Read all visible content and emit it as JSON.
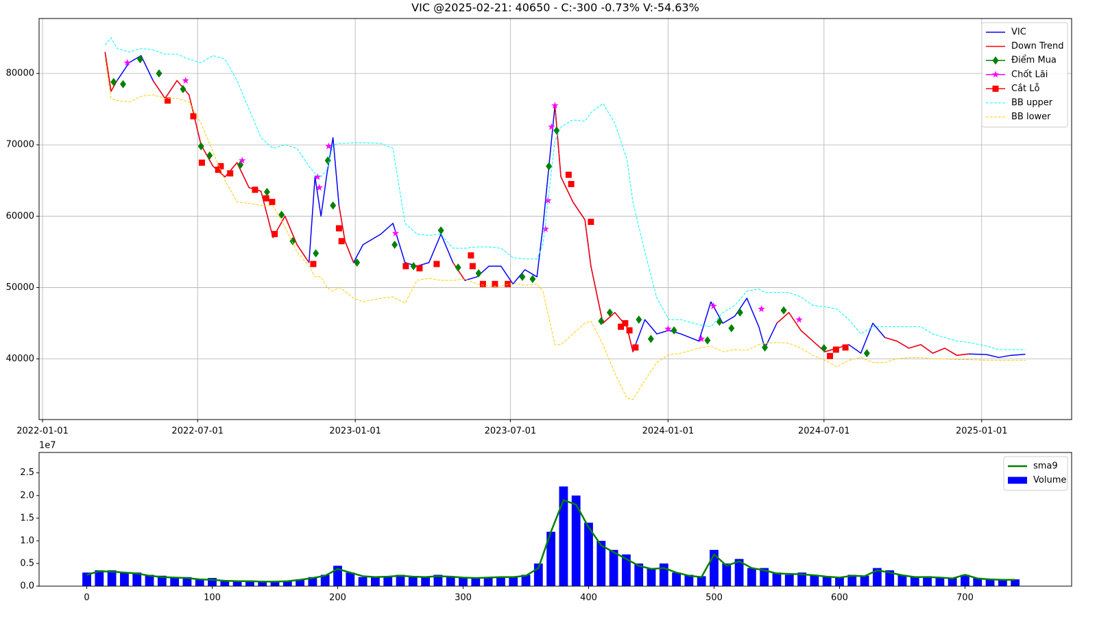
{
  "chart_data": [
    {
      "type": "line",
      "title": "VIC @2025-02-21: 40650 - C:-300 -0.73% V:-54.63%",
      "x_scale": "time",
      "grid": true,
      "legend": "upper right",
      "xlim": [
        "2021-12-28",
        "2025-04-16"
      ],
      "xticks": [
        "2022-01-01",
        "2022-07-01",
        "2023-01-01",
        "2023-07-01",
        "2024-01-01",
        "2024-07-01",
        "2025-01-01"
      ],
      "ylim": [
        31500,
        87700
      ],
      "yticks": [
        40000,
        50000,
        60000,
        70000,
        80000
      ],
      "x": [
        "2022-03-15",
        "2022-03-22",
        "2022-03-29",
        "2022-04-12",
        "2022-04-26",
        "2022-05-10",
        "2022-05-24",
        "2022-06-07",
        "2022-06-21",
        "2022-07-05",
        "2022-07-19",
        "2022-08-02",
        "2022-08-16",
        "2022-08-30",
        "2022-09-13",
        "2022-09-27",
        "2022-10-11",
        "2022-10-25",
        "2022-11-08",
        "2022-11-15",
        "2022-11-22",
        "2022-11-29",
        "2022-12-06",
        "2022-12-13",
        "2022-12-20",
        "2022-12-30",
        "2023-01-10",
        "2023-01-31",
        "2023-02-14",
        "2023-02-28",
        "2023-03-14",
        "2023-03-28",
        "2023-04-11",
        "2023-04-25",
        "2023-05-09",
        "2023-05-23",
        "2023-06-06",
        "2023-06-20",
        "2023-07-04",
        "2023-07-18",
        "2023-08-01",
        "2023-08-08",
        "2023-08-22",
        "2023-08-29",
        "2023-09-12",
        "2023-09-26",
        "2023-10-03",
        "2023-10-17",
        "2023-10-31",
        "2023-11-14",
        "2023-11-21",
        "2023-12-05",
        "2023-12-19",
        "2024-01-02",
        "2024-01-16",
        "2024-02-06",
        "2024-02-20",
        "2024-03-05",
        "2024-03-19",
        "2024-04-02",
        "2024-04-16",
        "2024-04-23",
        "2024-05-07",
        "2024-05-21",
        "2024-06-04",
        "2024-06-18",
        "2024-07-02",
        "2024-07-16",
        "2024-07-30",
        "2024-08-13",
        "2024-08-27",
        "2024-09-10",
        "2024-09-24",
        "2024-10-08",
        "2024-10-22",
        "2024-11-05",
        "2024-11-19",
        "2024-12-03",
        "2024-12-17",
        "2025-01-07",
        "2025-01-21",
        "2025-02-04",
        "2025-02-21"
      ],
      "series": [
        {
          "name": "VIC",
          "color": "#0000ff",
          "kind": "line",
          "linestyle": "solid",
          "values": [
            83000,
            77500,
            79000,
            81500,
            82500,
            79000,
            76500,
            79000,
            77000,
            70000,
            67000,
            65500,
            67500,
            64000,
            63500,
            57000,
            60000,
            56000,
            53500,
            65500,
            60000,
            66000,
            71000,
            61500,
            56500,
            53500,
            56000,
            57500,
            59000,
            53500,
            53000,
            53500,
            57500,
            53500,
            51000,
            51500,
            53000,
            53000,
            50500,
            52500,
            51500,
            58500,
            75500,
            65500,
            62000,
            59500,
            53000,
            45000,
            46500,
            44500,
            41000,
            45500,
            43500,
            44000,
            43500,
            42500,
            48000,
            45000,
            46000,
            48500,
            44500,
            41500,
            45000,
            46500,
            44000,
            42500,
            41000,
            41500,
            42000,
            40800,
            45000,
            43000,
            42500,
            41500,
            42000,
            40800,
            41500,
            40500,
            40700,
            40600,
            40200,
            40500,
            40650
          ]
        },
        {
          "name": "Down Trend",
          "color": "#ff0000",
          "kind": "line",
          "linestyle": "solid",
          "values": [
            83000,
            77500,
            79000,
            null,
            null,
            79000,
            76500,
            79000,
            77000,
            70000,
            67000,
            65500,
            67500,
            64000,
            63500,
            57000,
            60000,
            56000,
            53500,
            null,
            null,
            null,
            null,
            61500,
            56500,
            53500,
            null,
            null,
            null,
            null,
            null,
            null,
            null,
            53500,
            51000,
            null,
            null,
            null,
            null,
            null,
            null,
            null,
            75500,
            65500,
            62000,
            59500,
            53000,
            45000,
            46500,
            44500,
            41000,
            null,
            null,
            null,
            null,
            null,
            null,
            null,
            null,
            null,
            null,
            null,
            45000,
            46500,
            44000,
            42500,
            41000,
            41500,
            42000,
            null,
            null,
            43000,
            42500,
            41500,
            42000,
            40800,
            41500,
            40500,
            40700,
            null,
            null,
            null,
            null
          ]
        },
        {
          "name": "Điểm Mua",
          "color": "#008000",
          "kind": "marker",
          "marker": "diamond",
          "x": [
            "2022-03-25",
            "2022-04-05",
            "2022-04-25",
            "2022-05-17",
            "2022-06-14",
            "2022-07-05",
            "2022-07-15",
            "2022-08-20",
            "2022-09-20",
            "2022-10-07",
            "2022-10-20",
            "2022-11-16",
            "2022-11-30",
            "2022-12-06",
            "2023-01-03",
            "2023-02-16",
            "2023-03-10",
            "2023-04-11",
            "2023-05-01",
            "2023-05-25",
            "2023-07-15",
            "2023-07-27",
            "2023-08-15",
            "2023-08-24",
            "2023-10-15",
            "2023-10-25",
            "2023-11-28",
            "2023-12-12",
            "2024-01-08",
            "2024-02-16",
            "2024-03-01",
            "2024-03-15",
            "2024-03-25",
            "2024-04-23",
            "2024-05-15",
            "2024-07-01",
            "2024-08-20"
          ],
          "values": [
            78800,
            78500,
            82000,
            80000,
            77800,
            69800,
            68500,
            67200,
            63400,
            60200,
            56500,
            54800,
            67800,
            61500,
            53500,
            56000,
            53000,
            58000,
            52800,
            52000,
            51500,
            51200,
            67000,
            72000,
            45300,
            46500,
            45500,
            42800,
            44000,
            42600,
            45200,
            44300,
            46500,
            41600,
            46800,
            41500,
            40800
          ]
        },
        {
          "name": "Chốt Lãi",
          "color": "#ff00ff",
          "kind": "marker",
          "marker": "star",
          "x": [
            "2022-04-10",
            "2022-06-17",
            "2022-08-22",
            "2022-11-18",
            "2022-11-20",
            "2022-12-01",
            "2023-02-17",
            "2023-08-11",
            "2023-08-14",
            "2023-08-18",
            "2023-08-22",
            "2024-01-01",
            "2024-02-09",
            "2024-02-23",
            "2024-04-19",
            "2024-06-02"
          ],
          "values": [
            81500,
            79000,
            67800,
            65500,
            64000,
            69800,
            57600,
            58200,
            62200,
            72500,
            75500,
            44200,
            42800,
            47400,
            47000,
            45500
          ]
        },
        {
          "name": "Cắt Lỗ",
          "color": "#ff0000",
          "kind": "marker",
          "marker": "square",
          "x": [
            "2022-05-27",
            "2022-06-26",
            "2022-07-06",
            "2022-07-25",
            "2022-07-28",
            "2022-08-08",
            "2022-09-06",
            "2022-09-19",
            "2022-09-26",
            "2022-09-29",
            "2022-11-13",
            "2022-12-13",
            "2022-12-16",
            "2023-03-01",
            "2023-03-17",
            "2023-04-06",
            "2023-05-16",
            "2023-05-18",
            "2023-05-30",
            "2023-06-13",
            "2023-06-28",
            "2023-09-07",
            "2023-09-10",
            "2023-10-03",
            "2023-11-07",
            "2023-11-12",
            "2023-11-17",
            "2023-11-24",
            "2024-07-08",
            "2024-07-15",
            "2024-07-26"
          ],
          "values": [
            76200,
            74000,
            67500,
            66500,
            67000,
            66000,
            63700,
            62500,
            62000,
            57500,
            53300,
            58300,
            56500,
            53000,
            52700,
            53300,
            54500,
            53000,
            50500,
            50500,
            50500,
            65800,
            64500,
            59200,
            44500,
            45000,
            44000,
            41600,
            40400,
            41300,
            41600
          ]
        },
        {
          "name": "BB upper",
          "color": "#00ffff",
          "kind": "line",
          "linestyle": "dashed",
          "values": [
            84000,
            85000,
            83500,
            83000,
            83500,
            83300,
            82700,
            82700,
            82000,
            81500,
            82500,
            82000,
            79000,
            75000,
            71000,
            69500,
            70000,
            69500,
            67000,
            66000,
            65500,
            66500,
            70000,
            70200,
            70200,
            70300,
            70300,
            70200,
            69500,
            59000,
            57500,
            57300,
            57500,
            55500,
            55500,
            55700,
            55700,
            55500,
            54200,
            54000,
            54000,
            56000,
            70500,
            72500,
            73500,
            73300,
            74500,
            75800,
            73000,
            68000,
            62000,
            55000,
            48500,
            45500,
            45500,
            44800,
            44500,
            46500,
            47500,
            49500,
            49800,
            49300,
            49300,
            49300,
            48700,
            47500,
            47300,
            47000,
            45500,
            43500,
            44500,
            44500,
            44500,
            44500,
            44500,
            43500,
            43000,
            42500,
            42300,
            41800,
            41300,
            41300,
            41300
          ]
        },
        {
          "name": "BB lower",
          "color": "#ffcc00",
          "kind": "line",
          "linestyle": "dashed",
          "values": [
            82000,
            76500,
            76200,
            76000,
            76800,
            77000,
            76500,
            76500,
            76000,
            73000,
            69000,
            65000,
            62000,
            61800,
            61500,
            61500,
            58500,
            55000,
            53000,
            51500,
            51500,
            50000,
            49500,
            50000,
            49500,
            48500,
            48000,
            48500,
            48700,
            47800,
            51000,
            51300,
            51000,
            51000,
            51200,
            50500,
            50200,
            50200,
            50600,
            50300,
            50500,
            49500,
            42000,
            42000,
            43500,
            45000,
            45300,
            42000,
            38000,
            34500,
            34300,
            37000,
            39500,
            40600,
            40800,
            41500,
            41800,
            41000,
            41300,
            41200,
            42000,
            42200,
            42300,
            42200,
            41500,
            40500,
            39800,
            38900,
            39800,
            40200,
            39500,
            39500,
            40000,
            40200,
            40200,
            40000,
            40000,
            39900,
            39900,
            39800,
            39800,
            39800,
            39800
          ]
        }
      ]
    },
    {
      "type": "bar",
      "x_scale": "linear",
      "grid": false,
      "legend": "upper right",
      "y_offset_label": "1e7",
      "xlim": [
        -38,
        785
      ],
      "xticks": [
        0,
        100,
        200,
        300,
        400,
        500,
        600,
        700
      ],
      "ylim": [
        0,
        29500000
      ],
      "yticks": [
        {
          "value": 0,
          "label": "0.0"
        },
        {
          "value": 5000000,
          "label": "0.5"
        },
        {
          "value": 10000000,
          "label": "1.0"
        },
        {
          "value": 15000000,
          "label": "1.5"
        },
        {
          "value": 20000000,
          "label": "2.0"
        },
        {
          "value": 25000000,
          "label": "2.5"
        }
      ],
      "x": [
        0,
        10,
        20,
        30,
        40,
        50,
        60,
        70,
        80,
        90,
        100,
        110,
        120,
        130,
        140,
        150,
        160,
        170,
        180,
        190,
        200,
        210,
        220,
        230,
        240,
        250,
        260,
        270,
        280,
        290,
        300,
        310,
        320,
        330,
        340,
        350,
        360,
        370,
        380,
        390,
        400,
        410,
        420,
        430,
        440,
        450,
        460,
        470,
        480,
        490,
        500,
        510,
        520,
        530,
        540,
        550,
        560,
        570,
        580,
        590,
        600,
        610,
        620,
        630,
        640,
        650,
        660,
        670,
        680,
        690,
        700,
        710,
        720,
        730,
        740
      ],
      "series": [
        {
          "name": "sma9",
          "color": "#008000",
          "kind": "line",
          "linestyle": "solid",
          "values": [
            2500000,
            3300000,
            3200000,
            3000000,
            2800000,
            2300000,
            2000000,
            1900000,
            1800000,
            1500000,
            1400000,
            1200000,
            1100000,
            1100000,
            1000000,
            1000000,
            1100000,
            1400000,
            1800000,
            2300000,
            3800000,
            3000000,
            2200000,
            2000000,
            2100000,
            2300000,
            2100000,
            2000000,
            2200000,
            2100000,
            1900000,
            1800000,
            1900000,
            2000000,
            2000000,
            2300000,
            4000000,
            12000000,
            19000000,
            18000000,
            13000000,
            9000000,
            7500000,
            6000000,
            4500000,
            3800000,
            4000000,
            3000000,
            2300000,
            2000000,
            7000000,
            4500000,
            5500000,
            4000000,
            3500000,
            2800000,
            2700000,
            2600000,
            2400000,
            2100000,
            1900000,
            2300000,
            2200000,
            3500000,
            3000000,
            2400000,
            2000000,
            2000000,
            1900000,
            1700000,
            2500000,
            1700000,
            1500000,
            1400000,
            1400000
          ]
        },
        {
          "name": "Volume",
          "color": "#0000ff",
          "kind": "bar",
          "values": [
            3000000,
            3500000,
            3500000,
            3000000,
            3000000,
            2500000,
            2300000,
            2000000,
            2000000,
            1500000,
            1800000,
            1200000,
            1000000,
            1200000,
            1100000,
            1000000,
            1200000,
            1500000,
            2000000,
            2500000,
            4500000,
            3000000,
            2000000,
            2000000,
            2200000,
            2500000,
            2200000,
            2000000,
            2500000,
            2200000,
            2000000,
            1800000,
            2000000,
            2000000,
            2000000,
            2500000,
            5000000,
            12000000,
            22000000,
            20000000,
            14000000,
            10000000,
            8000000,
            7000000,
            5000000,
            4000000,
            5000000,
            3000000,
            2500000,
            2200000,
            8000000,
            5000000,
            6000000,
            4000000,
            4000000,
            3000000,
            2500000,
            3000000,
            2500000,
            2200000,
            2000000,
            2500000,
            2300000,
            4000000,
            3500000,
            2500000,
            2000000,
            2200000,
            2000000,
            1800000,
            2500000,
            1800000,
            1600000,
            1500000,
            1500000
          ]
        }
      ]
    }
  ]
}
